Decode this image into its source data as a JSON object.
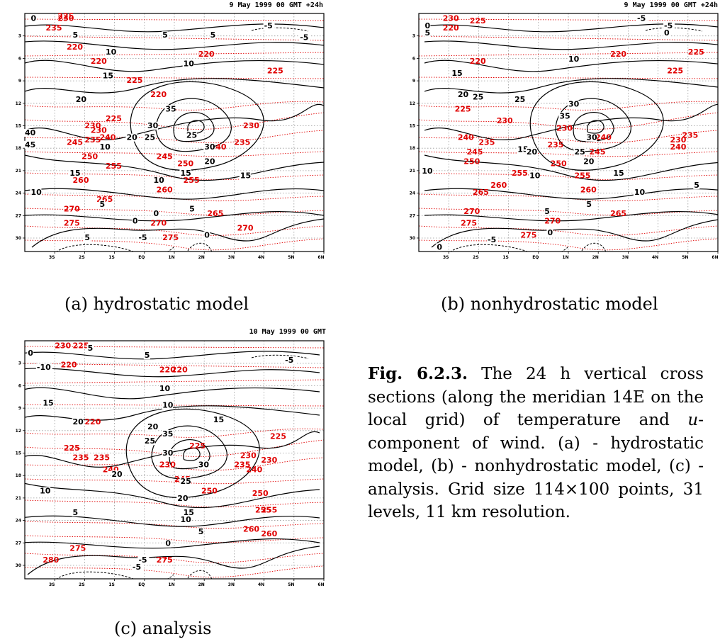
{
  "panels": [
    {
      "id": "a",
      "stamp": "9 May 1999 00 GMT +24h",
      "caption": "(a) hydrostatic model",
      "y_ticks": [
        "3",
        "6",
        "9",
        "12",
        "15",
        "18",
        "21",
        "24",
        "27",
        "30"
      ],
      "x_ticks": [
        "3S",
        "2S",
        "1S",
        "EQ",
        "1N",
        "2N",
        "3N",
        "4N",
        "5N",
        "6N"
      ],
      "u_labels": [
        "0",
        "-5",
        "5",
        "10",
        "15",
        "20",
        "25",
        "30",
        "35",
        "40",
        "45",
        "5",
        "10",
        "15",
        "20",
        "10",
        "15",
        "10",
        "5",
        "-5",
        "0",
        "0",
        "-5",
        "15",
        "25",
        "30",
        "20",
        "5",
        "10",
        "5",
        "0",
        "5"
      ],
      "t_labels": [
        "230",
        "225",
        "235",
        "220",
        "220",
        "225",
        "230",
        "220",
        "225",
        "230",
        "235",
        "240",
        "245",
        "250",
        "255",
        "260",
        "265",
        "270",
        "275",
        "270",
        "220",
        "225",
        "230",
        "235",
        "240",
        "245",
        "250",
        "255",
        "260",
        "265",
        "270",
        "275"
      ]
    },
    {
      "id": "b",
      "stamp": "9 May 1999 00 GMT +24h",
      "caption": "(b) nonhydrostatic model",
      "y_ticks": [
        "3",
        "6",
        "9",
        "12",
        "15",
        "18",
        "21",
        "24",
        "27",
        "30"
      ],
      "x_ticks": [
        "3S",
        "2S",
        "1S",
        "EQ",
        "1N",
        "2N",
        "3N",
        "4N",
        "5N",
        "6N"
      ],
      "u_labels": [
        "0",
        "-5",
        "5",
        "10",
        "15",
        "20",
        "25",
        "30",
        "35",
        "15",
        "10",
        "5",
        "0",
        "-5",
        "0",
        "20",
        "25",
        "30",
        "10",
        "5",
        "-5",
        "0",
        "5",
        "10",
        "15",
        "20",
        "25"
      ],
      "t_labels": [
        "230",
        "225",
        "220",
        "220",
        "225",
        "230",
        "235",
        "240",
        "245",
        "250",
        "255",
        "260",
        "265",
        "270",
        "275",
        "225",
        "230",
        "235",
        "240",
        "245",
        "250",
        "255",
        "260",
        "265",
        "270",
        "275",
        "220",
        "225",
        "230",
        "235",
        "240"
      ]
    },
    {
      "id": "c",
      "stamp": "10 May 1999 00 GMT",
      "caption": "(c) analysis",
      "y_ticks": [
        "3",
        "6",
        "9",
        "12",
        "15",
        "18",
        "21",
        "24",
        "27",
        "30"
      ],
      "x_ticks": [
        "3S",
        "2S",
        "1S",
        "EQ",
        "1N",
        "2N",
        "3N",
        "4N",
        "5N",
        "6N"
      ],
      "u_labels": [
        "0",
        "5",
        "-5",
        "-10",
        "10",
        "15",
        "20",
        "25",
        "30",
        "35",
        "20",
        "15",
        "10",
        "5",
        "0",
        "-5",
        "-5",
        "5",
        "10",
        "15",
        "20",
        "25",
        "30",
        "20",
        "10",
        "5",
        "0",
        "-5"
      ],
      "t_labels": [
        "230",
        "225",
        "220",
        "220",
        "220",
        "225",
        "230",
        "235",
        "240",
        "245",
        "250",
        "255",
        "260",
        "275",
        "280",
        "275",
        "225",
        "235",
        "230",
        "220",
        "225",
        "230",
        "235",
        "240",
        "250",
        "255",
        "260"
      ]
    }
  ],
  "figure_caption": {
    "label": "Fig. 6.2.3.",
    "text_1": " The 24 h vertical cross sections (along the meridian 14E on the local grid) of temperature and ",
    "u_symbol": "u",
    "text_2": "-component of wind. (a) - hydrostatic model, (b) - nonhydrostatic model, (c) - analysis.  Grid size 114×100 points, 31 levels, 11 km resolution."
  }
}
